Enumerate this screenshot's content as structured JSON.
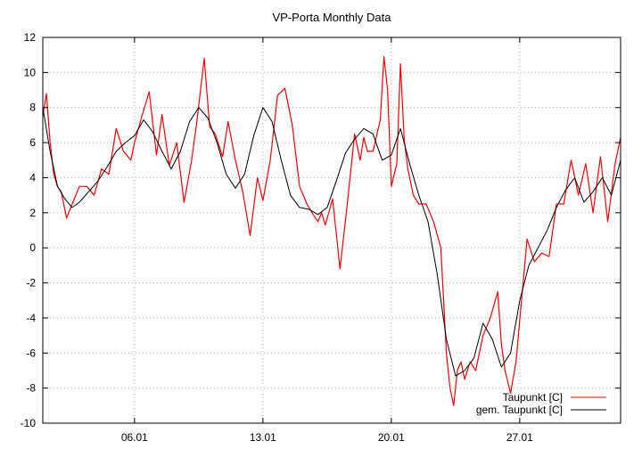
{
  "chart_data": {
    "type": "line",
    "title": "VP-Porta Monthly Data",
    "xlabel": "",
    "ylabel": "",
    "xlim": [
      0,
      31.5
    ],
    "ylim": [
      -10,
      12
    ],
    "grid": true,
    "legend_position": "bottom-right",
    "y_ticks": [
      -10,
      -8,
      -6,
      -4,
      -2,
      0,
      2,
      4,
      6,
      8,
      10,
      12
    ],
    "x_ticks": [
      {
        "x": 5,
        "label": "06.01"
      },
      {
        "x": 12,
        "label": "13.01"
      },
      {
        "x": 19,
        "label": "20.01"
      },
      {
        "x": 26,
        "label": "27.01"
      }
    ],
    "series": [
      {
        "name": "Taupunkt [C]",
        "color": "#ff0000",
        "x": [
          0.0,
          0.2,
          0.4,
          0.6,
          0.8,
          1.0,
          1.3,
          1.6,
          2.0,
          2.4,
          2.8,
          3.2,
          3.6,
          4.0,
          4.4,
          4.8,
          5.0,
          5.4,
          5.8,
          6.2,
          6.5,
          6.9,
          7.3,
          7.7,
          8.1,
          8.4,
          8.8,
          9.1,
          9.4,
          9.8,
          10.1,
          10.5,
          10.9,
          11.3,
          11.7,
          12.0,
          12.4,
          12.8,
          13.2,
          13.6,
          14.0,
          14.4,
          14.8,
          15.0,
          15.2,
          15.4,
          15.8,
          16.2,
          16.6,
          17.0,
          17.3,
          17.5,
          17.7,
          18.0,
          18.4,
          18.6,
          18.8,
          19.0,
          19.3,
          19.5,
          19.7,
          19.9,
          20.2,
          20.5,
          20.9,
          21.3,
          21.7,
          22.0,
          22.2,
          22.4,
          22.6,
          22.8,
          23.0,
          23.3,
          23.6,
          24.0,
          24.4,
          24.8,
          25.0,
          25.2,
          25.5,
          25.8,
          26.1,
          26.4,
          26.8,
          27.2,
          27.6,
          28.0,
          28.4,
          28.8,
          29.2,
          29.6,
          30.0,
          30.4,
          30.8,
          31.2,
          31.5
        ],
        "values": [
          7.5,
          8.8,
          6.0,
          4.2,
          3.5,
          3.2,
          1.7,
          2.5,
          3.5,
          3.5,
          3.0,
          4.5,
          4.2,
          6.8,
          5.5,
          5.0,
          6.0,
          7.5,
          8.9,
          5.3,
          7.6,
          4.7,
          6.0,
          2.6,
          4.9,
          7.2,
          10.8,
          6.9,
          6.5,
          5.2,
          7.2,
          5.0,
          3.2,
          0.7,
          4.0,
          2.7,
          5.0,
          8.7,
          9.1,
          7.0,
          3.5,
          2.5,
          1.8,
          1.5,
          2.0,
          1.3,
          2.8,
          -1.2,
          2.5,
          6.5,
          5.0,
          6.3,
          5.5,
          5.5,
          7.3,
          10.9,
          9.0,
          3.5,
          4.8,
          10.5,
          6.2,
          4.5,
          3.0,
          2.5,
          2.5,
          1.5,
          0.0,
          -6.0,
          -8.0,
          -9.0,
          -7.0,
          -6.5,
          -7.5,
          -6.5,
          -7.0,
          -5.0,
          -4.0,
          -2.5,
          -5.5,
          -7.0,
          -8.3,
          -6.5,
          -3.0,
          0.5,
          -0.8,
          -0.3,
          -0.5,
          2.5,
          2.5,
          5.0,
          3.0,
          4.8,
          2.0,
          5.2,
          1.5,
          4.8,
          6.3
        ]
      },
      {
        "name": "gem. Taupunkt [C]",
        "color": "#000000",
        "x": [
          0.0,
          0.4,
          0.8,
          1.2,
          1.6,
          2.0,
          2.5,
          3.0,
          3.5,
          4.0,
          4.5,
          5.0,
          5.5,
          6.0,
          6.5,
          7.0,
          7.5,
          8.0,
          8.5,
          9.0,
          9.5,
          10.0,
          10.5,
          11.0,
          11.5,
          12.0,
          12.5,
          13.0,
          13.5,
          14.0,
          14.5,
          15.0,
          15.5,
          16.0,
          16.5,
          17.0,
          17.5,
          18.0,
          18.5,
          19.0,
          19.5,
          20.0,
          20.5,
          21.0,
          21.5,
          22.0,
          22.5,
          23.0,
          23.5,
          24.0,
          24.5,
          25.0,
          25.5,
          26.0,
          26.5,
          27.0,
          27.5,
          28.0,
          28.5,
          29.0,
          29.5,
          30.0,
          30.5,
          31.0,
          31.5
        ],
        "values": [
          8.0,
          5.5,
          3.5,
          2.8,
          2.3,
          2.6,
          3.2,
          3.8,
          4.6,
          5.5,
          6.0,
          6.4,
          7.3,
          6.6,
          5.5,
          4.5,
          5.5,
          7.2,
          8.0,
          7.4,
          6.0,
          4.2,
          3.4,
          4.2,
          6.4,
          8.0,
          7.2,
          5.0,
          3.0,
          2.3,
          2.2,
          1.9,
          2.3,
          3.8,
          5.4,
          6.2,
          6.8,
          6.5,
          5.0,
          5.3,
          6.8,
          4.8,
          3.0,
          1.5,
          -1.5,
          -5.2,
          -7.3,
          -7.0,
          -6.3,
          -4.3,
          -5.2,
          -6.8,
          -6.0,
          -3.0,
          -1.0,
          0.0,
          1.0,
          2.3,
          3.3,
          4.0,
          2.6,
          3.2,
          4.0,
          3.0,
          5.0
        ]
      }
    ]
  }
}
